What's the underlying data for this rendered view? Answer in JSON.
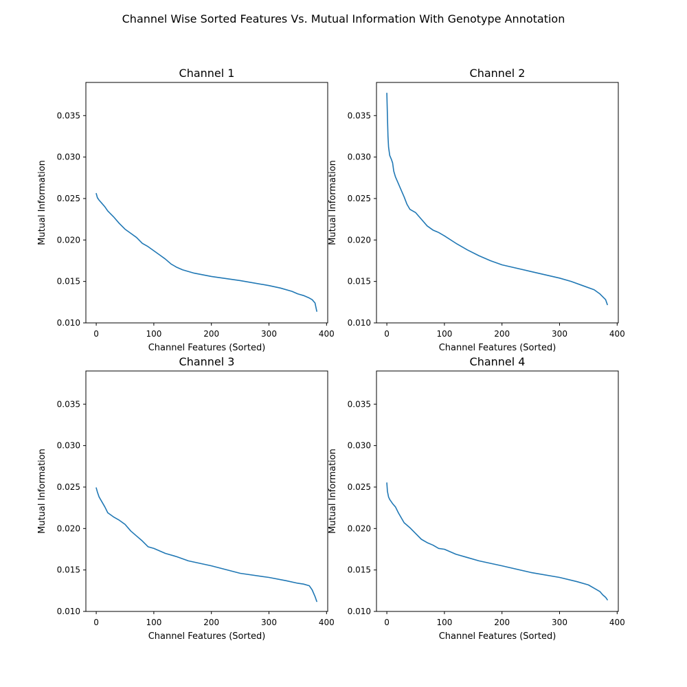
{
  "figure": {
    "title": "Channel Wise Sorted Features Vs. Mutual Information With Genotype Annotation"
  },
  "chart_data": [
    {
      "type": "line",
      "title": "Channel 1",
      "xlabel": "Channel Features (Sorted)",
      "ylabel": "Mutual Information",
      "xlim": [
        -18,
        402
      ],
      "ylim": [
        0.01,
        0.039
      ],
      "xticks": [
        0,
        100,
        200,
        300,
        400
      ],
      "yticks": [
        0.01,
        0.015,
        0.02,
        0.025,
        0.03,
        0.035
      ],
      "ytick_labels": [
        "0.010",
        "0.015",
        "0.020",
        "0.025",
        "0.030",
        "0.035"
      ],
      "color": "#1f77b4",
      "grid": false,
      "series": [
        {
          "x": [
            0,
            2,
            5,
            10,
            15,
            20,
            30,
            40,
            50,
            60,
            70,
            80,
            90,
            100,
            110,
            120,
            130,
            140,
            150,
            170,
            200,
            250,
            300,
            320,
            340,
            350,
            360,
            370,
            375,
            380,
            383
          ],
          "y": [
            0.0256,
            0.0251,
            0.0248,
            0.0244,
            0.024,
            0.0235,
            0.0228,
            0.022,
            0.0213,
            0.0208,
            0.0203,
            0.0196,
            0.0192,
            0.0187,
            0.0182,
            0.0177,
            0.0171,
            0.0167,
            0.0164,
            0.016,
            0.0156,
            0.0151,
            0.0145,
            0.0142,
            0.0138,
            0.0135,
            0.0133,
            0.013,
            0.0128,
            0.0124,
            0.0114
          ]
        }
      ]
    },
    {
      "type": "line",
      "title": "Channel 2",
      "xlabel": "Channel Features (Sorted)",
      "ylabel": "Mutual Information",
      "xlim": [
        -18,
        402
      ],
      "ylim": [
        0.01,
        0.039
      ],
      "xticks": [
        0,
        100,
        200,
        300,
        400
      ],
      "yticks": [
        0.01,
        0.015,
        0.02,
        0.025,
        0.03,
        0.035
      ],
      "ytick_labels": [
        "0.010",
        "0.015",
        "0.020",
        "0.025",
        "0.030",
        "0.035"
      ],
      "color": "#1f77b4",
      "grid": false,
      "series": [
        {
          "x": [
            0,
            1,
            2,
            3,
            5,
            8,
            10,
            12,
            15,
            20,
            25,
            30,
            35,
            40,
            50,
            60,
            70,
            80,
            90,
            100,
            120,
            140,
            160,
            180,
            200,
            250,
            300,
            320,
            340,
            360,
            370,
            380,
            383
          ],
          "y": [
            0.0377,
            0.035,
            0.0325,
            0.0312,
            0.0302,
            0.0297,
            0.0293,
            0.0283,
            0.0276,
            0.0268,
            0.026,
            0.0252,
            0.0243,
            0.0237,
            0.0233,
            0.0225,
            0.0217,
            0.0212,
            0.0209,
            0.0205,
            0.0196,
            0.0188,
            0.0181,
            0.0175,
            0.017,
            0.0162,
            0.0154,
            0.015,
            0.0145,
            0.014,
            0.0135,
            0.0128,
            0.0122
          ]
        }
      ]
    },
    {
      "type": "line",
      "title": "Channel 3",
      "xlabel": "Channel Features (Sorted)",
      "ylabel": "Mutual Information",
      "xlim": [
        -18,
        402
      ],
      "ylim": [
        0.01,
        0.039
      ],
      "xticks": [
        0,
        100,
        200,
        300,
        400
      ],
      "yticks": [
        0.01,
        0.015,
        0.02,
        0.025,
        0.03,
        0.035
      ],
      "ytick_labels": [
        "0.010",
        "0.015",
        "0.020",
        "0.025",
        "0.030",
        "0.035"
      ],
      "color": "#1f77b4",
      "grid": false,
      "series": [
        {
          "x": [
            0,
            2,
            5,
            10,
            15,
            20,
            30,
            40,
            50,
            60,
            70,
            80,
            90,
            100,
            120,
            140,
            160,
            180,
            200,
            250,
            300,
            330,
            350,
            360,
            370,
            375,
            380,
            383
          ],
          "y": [
            0.0249,
            0.0244,
            0.0238,
            0.0232,
            0.0226,
            0.0219,
            0.0214,
            0.021,
            0.0205,
            0.0197,
            0.0191,
            0.0185,
            0.0178,
            0.0176,
            0.017,
            0.0166,
            0.0161,
            0.0158,
            0.0155,
            0.0146,
            0.0141,
            0.0137,
            0.0134,
            0.0133,
            0.0131,
            0.0126,
            0.0118,
            0.0112
          ]
        }
      ]
    },
    {
      "type": "line",
      "title": "Channel 4",
      "xlabel": "Channel Features (Sorted)",
      "ylabel": "Mutual Information",
      "xlim": [
        -18,
        402
      ],
      "ylim": [
        0.01,
        0.039
      ],
      "xticks": [
        0,
        100,
        200,
        300,
        400
      ],
      "yticks": [
        0.01,
        0.015,
        0.02,
        0.025,
        0.03,
        0.035
      ],
      "ytick_labels": [
        "0.010",
        "0.015",
        "0.020",
        "0.025",
        "0.030",
        "0.035"
      ],
      "color": "#1f77b4",
      "grid": false,
      "series": [
        {
          "x": [
            0,
            1,
            3,
            5,
            10,
            15,
            20,
            25,
            30,
            40,
            50,
            60,
            70,
            80,
            90,
            100,
            120,
            140,
            160,
            180,
            200,
            250,
            300,
            330,
            350,
            360,
            370,
            375,
            380,
            383
          ],
          "y": [
            0.0255,
            0.0245,
            0.0238,
            0.0235,
            0.023,
            0.0226,
            0.0219,
            0.0213,
            0.0207,
            0.0201,
            0.0194,
            0.0187,
            0.0183,
            0.018,
            0.0176,
            0.0175,
            0.0169,
            0.0165,
            0.0161,
            0.0158,
            0.0155,
            0.0147,
            0.0141,
            0.0136,
            0.0132,
            0.0128,
            0.0124,
            0.012,
            0.0117,
            0.0114
          ]
        }
      ]
    }
  ]
}
